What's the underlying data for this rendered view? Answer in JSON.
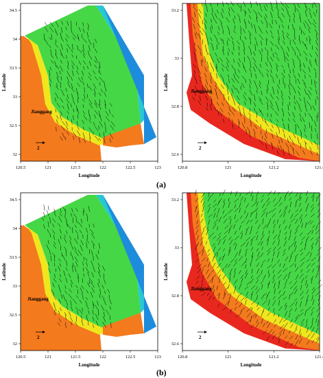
{
  "figure": {
    "captions": [
      "(a)",
      "(b)"
    ],
    "panels": [
      {
        "id": "a-left",
        "xlabel": "Longitude",
        "ylabel": "Latitude",
        "xticks": [
          "120.5",
          "121",
          "121.5",
          "122",
          "122.5",
          "123"
        ],
        "yticks": [
          "34.5",
          "34",
          "33.5",
          "33",
          "32.5",
          "32"
        ],
        "place_label": "Jianggang",
        "scale_label": "2"
      },
      {
        "id": "a-right",
        "xlabel": "Longitude",
        "ylabel": "Latitude",
        "xticks": [
          "120.8",
          "121",
          "121.2",
          "121.4"
        ],
        "yticks": [
          "33.2",
          "33",
          "32.8",
          "32.6"
        ],
        "place_label": "Jianggang",
        "scale_label": "2"
      },
      {
        "id": "b-left",
        "xlabel": "Longitude",
        "ylabel": "Latitude",
        "xticks": [
          "120.5",
          "121",
          "121.5",
          "122",
          "122.5",
          "123"
        ],
        "yticks": [
          "34.5",
          "34",
          "33.5",
          "33",
          "32.5",
          "32"
        ],
        "place_label": "Jianggang",
        "scale_label": "2"
      },
      {
        "id": "b-right",
        "xlabel": "Longitude",
        "ylabel": "Latitude",
        "xticks": [
          "120.8",
          "121",
          "121.2",
          "121.4"
        ],
        "yticks": [
          "33.2",
          "33",
          "32.8",
          "32.6"
        ],
        "place_label": "Jianggang",
        "scale_label": "2"
      }
    ],
    "colors": {
      "land": "#ffffff",
      "shore_red": "#e8281e",
      "orange": "#f47a1e",
      "yellow": "#f0e61e",
      "green": "#46d746",
      "cyan": "#28c8d2",
      "blue": "#1e8cdc",
      "arrow": "#000000"
    }
  }
}
